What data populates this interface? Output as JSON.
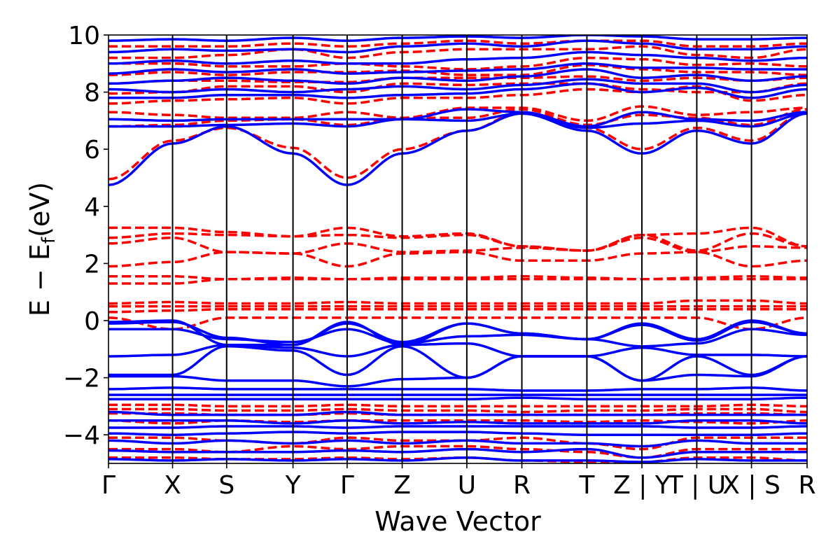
{
  "chart_data": {
    "type": "line",
    "title": "",
    "xlabel": "Wave Vector",
    "ylabel": "E − E",
    "ylabel_subscript": "f",
    "ylabel_unit": "(eV)",
    "ylim": [
      -5,
      10
    ],
    "y_ticks": [
      -4,
      -2,
      0,
      2,
      4,
      6,
      8,
      10
    ],
    "y_tick_labels": [
      "−4",
      "−2",
      "0",
      "2",
      "4",
      "6",
      "8",
      "10"
    ],
    "grid": false,
    "legend": "none",
    "k_path": [
      {
        "label": "Γ",
        "x": 0.0
      },
      {
        "label": "X",
        "x": 0.0917
      },
      {
        "label": "S",
        "x": 0.1691
      },
      {
        "label": "Y",
        "x": 0.2641
      },
      {
        "label": "Γ",
        "x": 0.3416
      },
      {
        "label": "Z",
        "x": 0.4204
      },
      {
        "label": "U",
        "x": 0.5129
      },
      {
        "label": "R",
        "x": 0.5917
      },
      {
        "label": "T",
        "x": 0.6848
      },
      {
        "label": "Z|Y",
        "x": 0.7635
      },
      {
        "label": "T|U",
        "x": 0.8421
      },
      {
        "label": "X|S",
        "x": 0.9204
      },
      {
        "label": "R",
        "x": 1.0
      }
    ],
    "colors": {
      "spin_up": "#0000ff",
      "spin_down": "#ff0000",
      "axis": "#000000"
    },
    "series": [
      {
        "style": "dashed",
        "color": "#ff0000",
        "bands": [
          [
            0.3,
            0.35,
            0.4,
            0.4,
            0.4,
            0.4,
            0.4,
            0.4,
            0.4,
            0.4,
            0.4,
            0.4,
            0.4
          ],
          [
            0.5,
            0.5,
            0.5,
            0.5,
            0.5,
            0.5,
            0.5,
            0.5,
            0.5,
            0.5,
            0.5,
            0.5,
            0.5
          ],
          [
            0.6,
            0.65,
            0.6,
            0.6,
            0.65,
            0.6,
            0.6,
            0.6,
            0.6,
            0.6,
            0.7,
            0.7,
            0.6
          ],
          [
            0.1,
            -0.3,
            0.1,
            0.1,
            0.1,
            0.1,
            0.1,
            0.1,
            0.1,
            0.1,
            0.1,
            -0.3,
            0.1
          ],
          [
            1.3,
            1.3,
            1.45,
            1.45,
            1.45,
            1.45,
            1.45,
            1.45,
            1.45,
            1.45,
            1.45,
            1.45,
            1.45
          ],
          [
            1.55,
            1.55,
            1.45,
            1.5,
            1.45,
            1.5,
            1.5,
            1.55,
            1.5,
            1.45,
            1.5,
            1.55,
            1.5
          ],
          [
            1.9,
            2.05,
            2.4,
            2.35,
            1.9,
            2.35,
            2.4,
            2.1,
            2.1,
            2.35,
            2.4,
            1.9,
            2.1
          ],
          [
            2.7,
            2.9,
            2.4,
            2.35,
            2.7,
            2.4,
            2.45,
            2.55,
            2.45,
            2.9,
            2.4,
            2.6,
            2.55
          ],
          [
            2.9,
            3.05,
            3.0,
            2.95,
            3.0,
            2.9,
            3.0,
            2.6,
            2.45,
            3.0,
            2.45,
            3.05,
            2.6
          ],
          [
            3.25,
            3.25,
            3.1,
            2.95,
            3.25,
            2.95,
            3.05,
            2.6,
            2.45,
            3.0,
            3.05,
            3.25,
            2.6
          ],
          [
            4.95,
            6.3,
            6.75,
            6.05,
            5.0,
            6.0,
            6.65,
            7.3,
            6.75,
            6.0,
            6.75,
            6.3,
            7.3
          ],
          [
            6.8,
            6.85,
            7.0,
            7.05,
            6.85,
            7.1,
            7.1,
            7.4,
            6.85,
            7.2,
            7.1,
            6.85,
            7.4
          ],
          [
            7.3,
            7.2,
            7.1,
            7.1,
            7.3,
            7.1,
            7.45,
            7.45,
            7.0,
            7.5,
            7.2,
            7.3,
            7.45
          ],
          [
            7.6,
            7.7,
            7.75,
            7.8,
            7.6,
            7.8,
            7.8,
            7.9,
            8.1,
            8.0,
            8.2,
            7.7,
            7.9
          ],
          [
            7.95,
            8.0,
            8.2,
            8.2,
            8.0,
            8.3,
            8.25,
            8.3,
            8.3,
            8.1,
            8.0,
            8.0,
            8.3
          ],
          [
            8.3,
            8.4,
            8.4,
            8.35,
            8.35,
            8.5,
            8.5,
            8.5,
            8.55,
            8.4,
            8.5,
            8.4,
            8.5
          ],
          [
            8.6,
            8.7,
            8.6,
            8.7,
            8.7,
            8.75,
            8.6,
            8.6,
            8.95,
            8.8,
            8.7,
            8.7,
            8.6
          ],
          [
            9.0,
            9.0,
            8.9,
            8.9,
            9.0,
            8.9,
            8.8,
            8.9,
            9.2,
            9.15,
            8.95,
            9.0,
            8.9
          ],
          [
            9.2,
            9.2,
            9.3,
            9.5,
            9.2,
            9.4,
            9.5,
            9.5,
            9.5,
            9.6,
            9.3,
            9.2,
            9.5
          ],
          [
            9.6,
            9.6,
            9.6,
            9.7,
            9.6,
            9.7,
            9.8,
            9.7,
            9.8,
            9.8,
            9.6,
            9.6,
            9.7
          ],
          [
            -2.95,
            -2.95,
            -3.0,
            -3.0,
            -2.95,
            -3.0,
            -3.0,
            -3.0,
            -3.0,
            -3.0,
            -3.0,
            -2.95,
            -3.0
          ],
          [
            -3.1,
            -3.1,
            -3.15,
            -3.15,
            -3.1,
            -3.15,
            -3.15,
            -3.2,
            -3.15,
            -3.15,
            -3.1,
            -3.1,
            -3.2
          ],
          [
            -3.25,
            -3.25,
            -3.3,
            -3.3,
            -3.25,
            -3.3,
            -3.3,
            -3.3,
            -3.3,
            -3.3,
            -3.25,
            -3.25,
            -3.3
          ],
          [
            -3.5,
            -3.6,
            -3.5,
            -3.55,
            -3.5,
            -3.5,
            -3.5,
            -3.5,
            -3.55,
            -3.5,
            -3.55,
            -3.6,
            -3.5
          ],
          [
            -4.1,
            -4.1,
            -4.2,
            -4.3,
            -4.1,
            -4.2,
            -4.2,
            -4.1,
            -4.3,
            -4.5,
            -4.1,
            -4.1,
            -4.1
          ],
          [
            -4.5,
            -4.5,
            -4.6,
            -4.4,
            -4.5,
            -4.4,
            -4.4,
            -4.5,
            -4.6,
            -4.8,
            -4.5,
            -4.5,
            -4.5
          ],
          [
            -4.8,
            -4.8,
            -4.85,
            -4.85,
            -4.8,
            -4.85,
            -4.8,
            -4.9,
            -4.95,
            -4.95,
            -4.8,
            -4.8,
            -4.9
          ]
        ]
      },
      {
        "style": "solid",
        "color": "#0000ff",
        "bands": [
          [
            -0.05,
            0.0,
            -0.85,
            -0.85,
            -0.05,
            -0.85,
            -0.1,
            -0.45,
            -0.65,
            -0.1,
            -0.65,
            0.0,
            -0.45
          ],
          [
            -0.1,
            -0.05,
            -0.6,
            -0.85,
            -0.1,
            -0.75,
            -0.1,
            -0.45,
            -0.65,
            -0.15,
            -0.7,
            -0.05,
            -0.45
          ],
          [
            -0.3,
            -0.3,
            -0.65,
            -0.75,
            -0.3,
            -0.8,
            -0.55,
            -0.5,
            -0.65,
            -0.9,
            -0.8,
            -0.3,
            -0.5
          ],
          [
            -1.25,
            -1.2,
            -0.85,
            -0.95,
            -1.25,
            -0.85,
            -0.8,
            -1.25,
            -1.25,
            -0.95,
            -1.2,
            -1.2,
            -1.25
          ],
          [
            -1.9,
            -1.9,
            -0.9,
            -1.05,
            -1.9,
            -0.9,
            -2.0,
            -1.25,
            -1.25,
            -2.1,
            -1.25,
            -1.9,
            -1.25
          ],
          [
            -1.95,
            -1.95,
            -2.1,
            -2.1,
            -2.3,
            -2.05,
            -2.0,
            -1.25,
            -1.25,
            -2.1,
            -1.9,
            -1.95,
            -1.25
          ],
          [
            -2.4,
            -2.35,
            -2.4,
            -2.4,
            -2.4,
            -2.4,
            -2.4,
            -2.45,
            -2.45,
            -2.4,
            -2.4,
            -2.35,
            -2.45
          ],
          [
            -2.6,
            -2.6,
            -2.6,
            -2.6,
            -2.6,
            -2.6,
            -2.6,
            -2.6,
            -2.6,
            -2.6,
            -2.6,
            -2.6,
            -2.6
          ],
          [
            -2.75,
            -2.75,
            -2.75,
            -2.75,
            -2.75,
            -2.75,
            -2.75,
            -2.7,
            -2.75,
            -2.75,
            -2.75,
            -2.75,
            -2.7
          ],
          [
            -3.2,
            -3.3,
            -3.3,
            -3.3,
            -3.2,
            -3.3,
            -3.3,
            -3.3,
            -3.3,
            -3.3,
            -3.3,
            -3.3,
            -3.3
          ],
          [
            -3.5,
            -3.5,
            -3.5,
            -3.6,
            -3.5,
            -3.6,
            -3.55,
            -3.6,
            -3.6,
            -3.6,
            -3.5,
            -3.5,
            -3.6
          ],
          [
            -3.75,
            -3.75,
            -3.7,
            -3.7,
            -3.75,
            -3.7,
            -3.7,
            -3.7,
            -3.7,
            -3.7,
            -3.75,
            -3.75,
            -3.7
          ],
          [
            -3.95,
            -4.0,
            -3.95,
            -3.9,
            -3.95,
            -3.9,
            -3.9,
            -3.95,
            -4.0,
            -4.0,
            -4.0,
            -4.0,
            -3.95
          ],
          [
            -4.2,
            -4.3,
            -4.2,
            -4.3,
            -4.2,
            -4.3,
            -4.2,
            -4.3,
            -4.3,
            -4.4,
            -4.2,
            -4.3,
            -4.3
          ],
          [
            -4.55,
            -4.6,
            -4.6,
            -4.6,
            -4.55,
            -4.6,
            -4.5,
            -4.6,
            -4.5,
            -4.8,
            -4.6,
            -4.6,
            -4.6
          ],
          [
            -4.85,
            -4.9,
            -4.85,
            -4.9,
            -4.85,
            -4.9,
            -4.8,
            -4.9,
            -4.9,
            -4.95,
            -4.85,
            -4.9,
            -4.9
          ],
          [
            4.75,
            6.2,
            6.8,
            5.85,
            4.75,
            5.85,
            6.65,
            7.25,
            6.65,
            5.85,
            6.65,
            6.2,
            7.25
          ],
          [
            6.8,
            6.8,
            6.85,
            6.9,
            6.8,
            7.05,
            7.0,
            7.25,
            6.75,
            6.9,
            7.0,
            6.8,
            7.25
          ],
          [
            7.05,
            7.0,
            7.05,
            7.05,
            7.05,
            7.05,
            7.4,
            7.3,
            6.8,
            7.3,
            7.05,
            7.0,
            7.3
          ],
          [
            7.8,
            7.8,
            7.9,
            7.9,
            7.8,
            7.9,
            7.95,
            8.1,
            8.3,
            8.0,
            8.15,
            7.8,
            8.1
          ],
          [
            8.1,
            8.0,
            8.1,
            8.0,
            8.1,
            8.2,
            8.1,
            8.25,
            8.45,
            8.3,
            8.3,
            8.0,
            8.25
          ],
          [
            8.3,
            8.4,
            8.5,
            8.4,
            8.3,
            8.5,
            8.4,
            8.55,
            8.8,
            8.5,
            8.6,
            8.4,
            8.55
          ],
          [
            8.65,
            8.8,
            8.7,
            8.8,
            8.65,
            8.7,
            8.75,
            8.8,
            9.0,
            8.85,
            8.85,
            8.8,
            8.8
          ],
          [
            9.0,
            9.1,
            9.0,
            9.1,
            9.0,
            9.0,
            9.15,
            9.2,
            9.4,
            9.3,
            9.2,
            9.1,
            9.2
          ],
          [
            9.4,
            9.5,
            9.45,
            9.5,
            9.4,
            9.6,
            9.7,
            9.6,
            9.8,
            9.7,
            9.5,
            9.5,
            9.6
          ],
          [
            9.8,
            9.85,
            9.8,
            9.9,
            9.8,
            9.9,
            9.95,
            9.9,
            10.0,
            9.95,
            9.85,
            9.85,
            9.9
          ]
        ]
      }
    ]
  }
}
